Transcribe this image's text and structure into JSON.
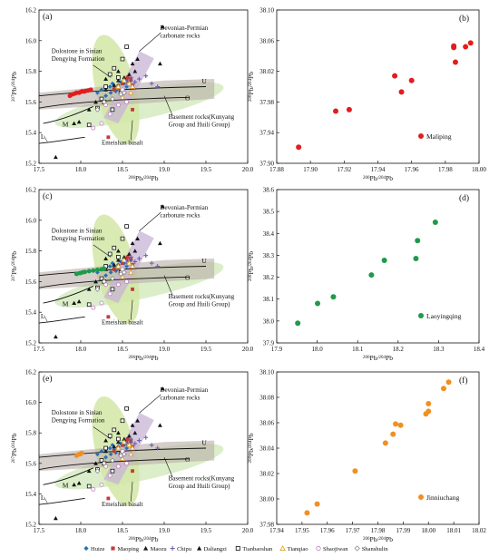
{
  "colors": {
    "huize": "#2a6fb4",
    "maoping": "#c23b3b",
    "maozu": "#1a1a1a",
    "chipu": "#6b62b0",
    "daliangzi": "#111111",
    "tianbaoshan": "#111111",
    "tianqiao": "#e0a020",
    "shaojiwan": "#c080c0",
    "shanshulin": "#888888",
    "maliping": "#e01e1e",
    "laoyingqing": "#1f9a4a",
    "jinniuchang": "#f09022",
    "zone_sinian": "#d2e6a6",
    "zone_devonian": "#c8b4d6",
    "zone_basement": "#b9aea9",
    "zone_emeishan": "#cfe8b7"
  },
  "legend": [
    {
      "name": "Huize",
      "marker": "diamond",
      "color": "#2a6fb4"
    },
    {
      "name": "Maoping",
      "marker": "square",
      "color": "#c23b3b"
    },
    {
      "name": "Maozu",
      "marker": "triangle",
      "color": "#1a1a1a"
    },
    {
      "name": "Chipu",
      "marker": "plus",
      "color": "#6b62b0"
    },
    {
      "name": "Daliangzi",
      "marker": "triangle",
      "color": "#111111"
    },
    {
      "name": "Tianbaoshan",
      "marker": "square-open",
      "color": "#111111"
    },
    {
      "name": "Tianqiao",
      "marker": "triangle-open",
      "color": "#e0a020"
    },
    {
      "name": "Shaojiwan",
      "marker": "circle-open",
      "color": "#c080c0"
    },
    {
      "name": "Shanshulin",
      "marker": "diamond-open",
      "color": "#888888"
    }
  ],
  "chart_data": [
    {
      "panel_label": "(a)",
      "type": "scatter",
      "xlabel": "206Pb/204Pb",
      "ylabel": "207Pb/204Pb",
      "xlim": [
        17.5,
        20.0
      ],
      "ylim": [
        15.2,
        16.2
      ],
      "xticks": [
        "17.5",
        "18.0",
        "18.5",
        "19.0",
        "19.5",
        "20.0"
      ],
      "yticks": [
        "15.2",
        "15.4",
        "15.6",
        "15.8",
        "16.0",
        "16.2"
      ],
      "annotations": [
        "Devonian-Permian carbonate rocks",
        "Dolostone in Sinian Dengying Formation",
        "Basement rocks(Kunyang Group and Huili Group)",
        "Emeishan basalt",
        "U",
        "O",
        "M",
        "L"
      ],
      "highlight": {
        "name": "",
        "color": "#e01e1e",
        "values": [
          [
            17.87,
            15.64
          ],
          [
            17.9,
            15.65
          ],
          [
            17.93,
            15.655
          ],
          [
            17.95,
            15.66
          ],
          [
            17.98,
            15.66
          ],
          [
            18.0,
            15.665
          ],
          [
            18.02,
            15.67
          ],
          [
            18.04,
            15.668
          ],
          [
            18.06,
            15.672
          ],
          [
            18.09,
            15.675
          ],
          [
            18.12,
            15.68
          ]
        ]
      }
    },
    {
      "panel_label": "(b)",
      "type": "scatter",
      "xlabel": "206Pb/204Pb",
      "ylabel": "208Pb/204Pb",
      "xlim": [
        17.88,
        18.0
      ],
      "ylim": [
        37.9,
        38.1
      ],
      "xticks": [
        "17.88",
        "17.90",
        "17.92",
        "17.94",
        "17.96",
        "17.98",
        "18.00"
      ],
      "yticks": [
        "37.90",
        "37.94",
        "37.98",
        "38.02",
        "38.06",
        "38.10"
      ],
      "series": [
        {
          "name": "Maliping",
          "color": "#e01e1e",
          "values": [
            [
              17.893,
              37.921
            ],
            [
              17.915,
              37.968
            ],
            [
              17.923,
              37.97
            ],
            [
              17.95,
              38.014
            ],
            [
              17.954,
              37.993
            ],
            [
              17.96,
              38.008
            ],
            [
              17.985,
              38.051
            ],
            [
              17.985,
              38.053
            ],
            [
              17.986,
              38.032
            ],
            [
              17.992,
              38.052
            ],
            [
              17.995,
              38.057
            ]
          ]
        }
      ]
    },
    {
      "panel_label": "(c)",
      "type": "scatter",
      "xlabel": "206Pb/204Pb",
      "ylabel": "207Pb/204Pb",
      "xlim": [
        17.5,
        20.0
      ],
      "ylim": [
        15.2,
        16.2
      ],
      "xticks": [
        "17.5",
        "18.0",
        "18.5",
        "19.0",
        "19.5",
        "20.0"
      ],
      "yticks": [
        "15.2",
        "15.4",
        "15.6",
        "15.8",
        "16.0",
        "16.2"
      ],
      "annotations": [
        "Devonian-Permian carbonate rocks",
        "Dolostone in Sinian Dengying Formation",
        "Basement rocks(Kunyang Group and Huili Group)",
        "Emeishan basalt",
        "U",
        "O",
        "M",
        "L"
      ],
      "highlight": {
        "name": "",
        "color": "#1f9a4a",
        "values": [
          [
            17.95,
            15.65
          ],
          [
            17.99,
            15.655
          ],
          [
            18.02,
            15.66
          ],
          [
            18.05,
            15.663
          ],
          [
            18.1,
            15.668
          ],
          [
            18.15,
            15.672
          ],
          [
            18.2,
            15.676
          ],
          [
            18.25,
            15.68
          ],
          [
            18.28,
            15.684
          ]
        ]
      }
    },
    {
      "panel_label": "(d)",
      "type": "scatter",
      "xlabel": "206Pb/204Pb",
      "ylabel": "208Pb/204Pb",
      "xlim": [
        17.9,
        18.4
      ],
      "ylim": [
        37.9,
        38.6
      ],
      "xticks": [
        "17.9",
        "18.0",
        "18.1",
        "18.2",
        "18.3",
        "18.4"
      ],
      "yticks": [
        "37.9",
        "38.0",
        "38.1",
        "38.2",
        "38.3",
        "38.4",
        "38.5",
        "38.6"
      ],
      "series": [
        {
          "name": "Laoyingqing",
          "color": "#1f9a4a",
          "values": [
            [
              17.952,
              37.99
            ],
            [
              18.001,
              38.08
            ],
            [
              18.04,
              38.11
            ],
            [
              18.134,
              38.21
            ],
            [
              18.166,
              38.277
            ],
            [
              18.244,
              38.285
            ],
            [
              18.248,
              38.367
            ],
            [
              18.292,
              38.451
            ]
          ]
        }
      ]
    },
    {
      "panel_label": "(e)",
      "type": "scatter",
      "xlabel": "206Pb/204Pb",
      "ylabel": "207Pb/204Pb",
      "xlim": [
        17.5,
        20.0
      ],
      "ylim": [
        15.2,
        16.2
      ],
      "xticks": [
        "17.5",
        "18.0",
        "18.5",
        "19.0",
        "19.5",
        "20.0"
      ],
      "yticks": [
        "15.2",
        "15.4",
        "15.6",
        "15.8",
        "16.0",
        "16.2"
      ],
      "annotations": [
        "Devonian-Permian carbonate rocks",
        "Dolostone in Sinian Dengying Formation",
        "Basement rocks(Kunyang Group and Huili Group)",
        "Emeishan basalt",
        "U",
        "O",
        "M",
        "L"
      ],
      "highlight": {
        "name": "",
        "color": "#f09022",
        "values": [
          [
            17.95,
            15.65
          ],
          [
            17.96,
            15.655
          ],
          [
            17.98,
            15.66
          ],
          [
            17.99,
            15.66
          ],
          [
            18.0,
            15.662
          ],
          [
            18.005,
            15.665
          ],
          [
            18.01,
            15.668
          ]
        ]
      }
    },
    {
      "panel_label": "(f)",
      "type": "scatter",
      "xlabel": "206Pb/204Pb",
      "ylabel": "208Pb/204Pb",
      "xlim": [
        17.94,
        18.02
      ],
      "ylim": [
        37.98,
        38.1
      ],
      "xticks": [
        "17.94",
        "17.95",
        "17.96",
        "17.97",
        "17.98",
        "17.99",
        "18.00",
        "18.01",
        "18.02"
      ],
      "yticks": [
        "37.98",
        "38.00",
        "38.02",
        "38.04",
        "38.06",
        "38.08",
        "38.10"
      ],
      "series": [
        {
          "name": "Jinniuchang",
          "color": "#f09022",
          "values": [
            [
              17.952,
              37.989
            ],
            [
              17.956,
              37.996
            ],
            [
              17.971,
              38.022
            ],
            [
              17.983,
              38.044
            ],
            [
              17.986,
              38.051
            ],
            [
              17.987,
              38.059
            ],
            [
              17.989,
              38.058
            ],
            [
              17.999,
              38.067
            ],
            [
              18.0,
              38.069
            ],
            [
              18.0,
              38.075
            ],
            [
              18.006,
              38.087
            ],
            [
              18.008,
              38.092
            ]
          ]
        }
      ]
    }
  ],
  "background_scatter": {
    "huize": [
      [
        18.2,
        15.66
      ],
      [
        18.25,
        15.68
      ],
      [
        18.3,
        15.69
      ],
      [
        18.35,
        15.7
      ],
      [
        18.38,
        15.72
      ],
      [
        18.42,
        15.67
      ],
      [
        18.45,
        15.71
      ],
      [
        18.3,
        15.64
      ],
      [
        18.48,
        15.73
      ],
      [
        18.52,
        15.72
      ],
      [
        18.4,
        15.69
      ],
      [
        18.55,
        15.7
      ],
      [
        18.6,
        15.74
      ],
      [
        18.36,
        15.66
      ]
    ],
    "maoping": [
      [
        18.4,
        15.68
      ],
      [
        18.45,
        15.7
      ],
      [
        18.5,
        15.72
      ],
      [
        18.55,
        15.74
      ],
      [
        18.6,
        15.75
      ],
      [
        18.62,
        15.71
      ],
      [
        18.62,
        15.55
      ],
      [
        18.33,
        15.37
      ],
      [
        18.56,
        15.76
      ]
    ],
    "maozu": [
      [
        18.3,
        15.68
      ],
      [
        18.4,
        15.71
      ],
      [
        18.45,
        15.74
      ],
      [
        18.52,
        15.76
      ],
      [
        18.58,
        15.78
      ],
      [
        18.65,
        15.8
      ]
    ],
    "chipu": [
      [
        18.55,
        15.73
      ],
      [
        18.6,
        15.76
      ],
      [
        18.65,
        15.73
      ],
      [
        18.7,
        15.75
      ],
      [
        18.78,
        15.77
      ],
      [
        18.85,
        15.72
      ],
      [
        18.92,
        15.7
      ]
    ],
    "daliangzi": [
      [
        17.7,
        15.24
      ],
      [
        17.92,
        15.46
      ],
      [
        17.98,
        15.47
      ],
      [
        18.1,
        15.55
      ],
      [
        18.18,
        15.6
      ],
      [
        18.3,
        15.75
      ],
      [
        18.45,
        15.8
      ],
      [
        18.62,
        15.85
      ],
      [
        18.68,
        15.88
      ],
      [
        18.95,
        15.85
      ],
      [
        18.98,
        16.09
      ]
    ],
    "tianbaoshan": [
      [
        18.1,
        15.45
      ],
      [
        18.2,
        15.56
      ],
      [
        18.25,
        15.62
      ],
      [
        18.3,
        15.7
      ],
      [
        18.35,
        15.78
      ],
      [
        18.4,
        15.82
      ],
      [
        18.45,
        15.76
      ],
      [
        18.5,
        15.88
      ],
      [
        18.55,
        15.96
      ],
      [
        18.28,
        15.6
      ],
      [
        18.48,
        15.66
      ],
      [
        18.38,
        15.55
      ]
    ],
    "tianqiao": [
      [
        18.45,
        15.7
      ],
      [
        18.52,
        15.74
      ],
      [
        18.58,
        15.72
      ],
      [
        18.6,
        15.66
      ],
      [
        18.5,
        15.63
      ],
      [
        18.62,
        15.7
      ]
    ],
    "shaojiwan": [
      [
        18.15,
        15.43
      ],
      [
        18.25,
        15.46
      ],
      [
        18.35,
        15.52
      ],
      [
        18.45,
        15.58
      ],
      [
        18.55,
        15.6
      ],
      [
        18.5,
        15.68
      ],
      [
        18.3,
        15.58
      ]
    ],
    "shanshulin": [
      [
        18.2,
        15.55
      ],
      [
        18.28,
        15.6
      ],
      [
        18.38,
        15.62
      ],
      [
        18.48,
        15.65
      ],
      [
        18.52,
        15.66
      ]
    ]
  },
  "panels_text": {
    "a": {
      "label": "(a)",
      "xlabel": "206Pb/204Pb",
      "ylabel": "207Pb/204Pb"
    },
    "b": {
      "label": "(b)",
      "series": "Maliping"
    },
    "c": {
      "label": "(c)"
    },
    "d": {
      "label": "(d)",
      "series": "Laoyingqing"
    },
    "e": {
      "label": "(e)"
    },
    "f": {
      "label": "(f)",
      "series": "Jinniuchang"
    }
  }
}
